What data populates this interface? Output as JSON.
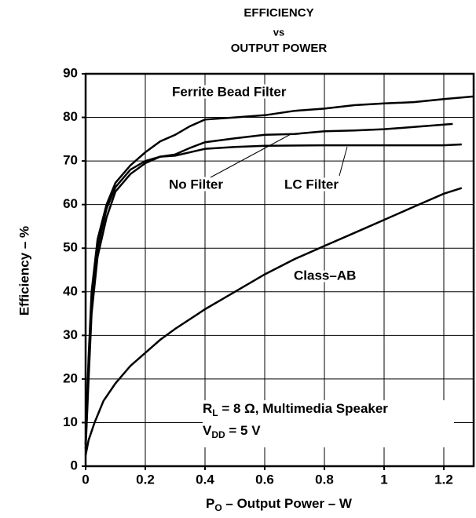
{
  "chart_data": {
    "type": "line",
    "title": [
      "EFFICIENCY",
      "vs",
      "OUTPUT POWER"
    ],
    "x_label": [
      "P",
      "O",
      " – Output Power – W"
    ],
    "y_label": "Efficiency – %",
    "annotations": [
      [
        "R",
        "L",
        " = 8 Ω, Multimedia Speaker"
      ],
      [
        "V",
        "DD",
        " = 5 V"
      ]
    ],
    "xlim": [
      0,
      1.3
    ],
    "ylim": [
      0,
      90
    ],
    "xticks": [
      0,
      0.2,
      0.4,
      0.6,
      0.8,
      1,
      1.2
    ],
    "yticks": [
      0,
      10,
      20,
      30,
      40,
      50,
      60,
      70,
      80,
      90
    ],
    "grid": true,
    "series": [
      {
        "name": "Ferrite Bead Filter",
        "color": "#000000",
        "x": [
          0,
          0.01,
          0.02,
          0.04,
          0.07,
          0.1,
          0.15,
          0.2,
          0.25,
          0.3,
          0.35,
          0.4,
          0.5,
          0.6,
          0.7,
          0.8,
          0.9,
          1.0,
          1.1,
          1.2,
          1.3
        ],
        "values": [
          5,
          25,
          40,
          52,
          60,
          65,
          69,
          72,
          74.5,
          76,
          78,
          79.5,
          80,
          80.5,
          81.5,
          82,
          82.8,
          83.2,
          83.5,
          84.2,
          84.8
        ]
      },
      {
        "name": "No Filter",
        "color": "#000000",
        "x": [
          0,
          0.01,
          0.02,
          0.04,
          0.07,
          0.1,
          0.15,
          0.2,
          0.25,
          0.3,
          0.35,
          0.4,
          0.5,
          0.6,
          0.7,
          0.8,
          0.9,
          1.0,
          1.1,
          1.23
        ],
        "values": [
          5,
          22,
          38,
          50,
          59,
          64,
          68,
          70,
          71,
          71.5,
          73,
          74.3,
          75.2,
          76,
          76.2,
          76.8,
          77,
          77.3,
          77.8,
          78.5
        ]
      },
      {
        "name": "LC Filter",
        "color": "#000000",
        "x": [
          0,
          0.01,
          0.02,
          0.04,
          0.07,
          0.1,
          0.15,
          0.2,
          0.25,
          0.3,
          0.4,
          0.5,
          0.6,
          0.8,
          1.0,
          1.2,
          1.26
        ],
        "values": [
          4,
          20,
          35,
          48,
          57,
          63,
          67,
          69.5,
          71,
          71.2,
          72.8,
          73.2,
          73.5,
          73.6,
          73.6,
          73.6,
          73.8
        ]
      },
      {
        "name": "Class–AB",
        "color": "#000000",
        "x": [
          0,
          0.01,
          0.03,
          0.06,
          0.1,
          0.15,
          0.2,
          0.25,
          0.3,
          0.4,
          0.5,
          0.6,
          0.7,
          0.8,
          0.9,
          1.0,
          1.1,
          1.2,
          1.26
        ],
        "values": [
          2.5,
          6,
          10,
          15,
          19,
          23,
          26,
          29,
          31.5,
          36,
          40,
          44,
          47.5,
          50.5,
          53.5,
          56.5,
          59.5,
          62.5,
          63.8
        ]
      }
    ]
  }
}
